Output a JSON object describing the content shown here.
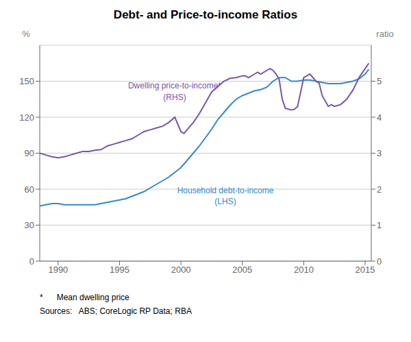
{
  "chart_data": {
    "type": "line",
    "title": "Debt- and Price-to-income Ratios",
    "ylabel": "%",
    "y2label": "ratio",
    "annotations": [
      "*      Mean dwelling price",
      "Sources:   ABS; CoreLogic RP Data; RBA"
    ],
    "xlim": [
      1988.5,
      2015.5
    ],
    "xticks": [
      1990,
      1995,
      2000,
      2005,
      2010,
      2015
    ],
    "ylim": [
      0,
      180
    ],
    "yticks": [
      0,
      30,
      60,
      90,
      120,
      150
    ],
    "y2lim": [
      0,
      6
    ],
    "y2ticks": [
      0,
      1,
      2,
      3,
      4,
      5
    ],
    "grid": true,
    "series": [
      {
        "name": "Household debt-to-income\n(LHS)",
        "color": "#3388cc",
        "axis": "y",
        "x": [
          1988.5,
          1989.0,
          1989.5,
          1990.0,
          1990.5,
          1991.0,
          1991.5,
          1992.0,
          1992.5,
          1993.0,
          1993.5,
          1994.0,
          1994.5,
          1995.0,
          1995.5,
          1996.0,
          1996.5,
          1997.0,
          1997.5,
          1998.0,
          1998.5,
          1999.0,
          1999.5,
          2000.0,
          2000.5,
          2001.0,
          2001.5,
          2002.0,
          2002.5,
          2003.0,
          2003.5,
          2004.0,
          2004.5,
          2005.0,
          2005.5,
          2006.0,
          2006.5,
          2007.0,
          2007.5,
          2008.0,
          2008.5,
          2009.0,
          2009.5,
          2010.0,
          2010.5,
          2011.0,
          2011.5,
          2012.0,
          2012.5,
          2013.0,
          2013.5,
          2014.0,
          2014.5,
          2015.0,
          2015.3
        ],
        "values": [
          46,
          47,
          48,
          48,
          47,
          47,
          47,
          47,
          47,
          47,
          48,
          49,
          50,
          51,
          52,
          54,
          56,
          58,
          61,
          64,
          67,
          70,
          74,
          78,
          84,
          90,
          96,
          103,
          110,
          118,
          124,
          130,
          135,
          138,
          140,
          142,
          143,
          145,
          150,
          153,
          153,
          150,
          150,
          151,
          151,
          150,
          149,
          148,
          148,
          148,
          149,
          150,
          152,
          156,
          160
        ]
      },
      {
        "name": "Dwelling price-to-income*\n(RHS)",
        "color": "#7755aa",
        "axis": "y2",
        "x": [
          1988.5,
          1989.0,
          1989.5,
          1990.0,
          1990.5,
          1991.0,
          1991.5,
          1992.0,
          1992.5,
          1993.0,
          1993.5,
          1994.0,
          1994.5,
          1995.0,
          1995.5,
          1996.0,
          1996.5,
          1997.0,
          1997.5,
          1998.0,
          1998.5,
          1999.0,
          1999.5,
          2000.0,
          2000.25,
          2000.5,
          2001.0,
          2001.5,
          2002.0,
          2002.5,
          2003.0,
          2003.5,
          2004.0,
          2004.5,
          2005.0,
          2005.25,
          2005.5,
          2006.0,
          2006.25,
          2006.5,
          2007.0,
          2007.25,
          2007.5,
          2007.75,
          2008.0,
          2008.25,
          2008.5,
          2009.0,
          2009.25,
          2009.5,
          2010.0,
          2010.25,
          2010.5,
          2010.75,
          2011.0,
          2011.25,
          2011.5,
          2012.0,
          2012.25,
          2012.5,
          2013.0,
          2013.5,
          2014.0,
          2014.5,
          2015.0,
          2015.3
        ],
        "values": [
          3.0,
          2.95,
          2.9,
          2.87,
          2.9,
          2.95,
          3.0,
          3.05,
          3.05,
          3.08,
          3.1,
          3.2,
          3.25,
          3.3,
          3.35,
          3.4,
          3.5,
          3.6,
          3.65,
          3.7,
          3.75,
          3.85,
          4.0,
          3.6,
          3.55,
          3.65,
          3.85,
          4.1,
          4.4,
          4.7,
          4.85,
          5.0,
          5.08,
          5.1,
          5.15,
          5.15,
          5.1,
          5.2,
          5.25,
          5.2,
          5.3,
          5.35,
          5.3,
          5.2,
          5.05,
          4.5,
          4.25,
          4.2,
          4.22,
          4.3,
          5.1,
          5.15,
          5.2,
          5.1,
          5.0,
          4.95,
          4.6,
          4.3,
          4.35,
          4.3,
          4.35,
          4.5,
          4.75,
          5.1,
          5.35,
          5.5
        ]
      }
    ]
  }
}
